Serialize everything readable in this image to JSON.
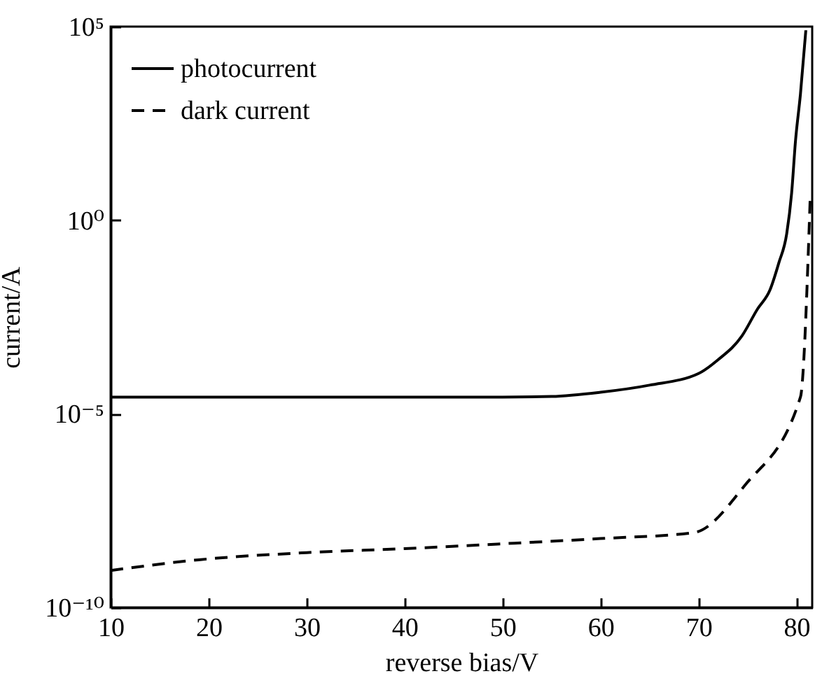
{
  "chart_data": {
    "type": "line",
    "xlabel": "reverse bias/V",
    "ylabel": "current/A",
    "log": "y",
    "legend": "top left",
    "xlim": [
      10,
      81.6
    ],
    "xticks": [
      10,
      20,
      30,
      40,
      50,
      60,
      70,
      80
    ],
    "ylim": [
      1e-10,
      100000.0
    ],
    "yticks": [
      {
        "value": 1e-10,
        "label": "10⁻¹⁰"
      },
      {
        "value": 1e-05,
        "label": "10⁻⁵"
      },
      {
        "value": 1,
        "label": "10⁰"
      },
      {
        "value": 100000.0,
        "label": "10⁵"
      }
    ],
    "series": [
      {
        "name": "photocurrent",
        "color": "#000000",
        "line_style": "solid",
        "x": [
          10,
          20,
          30,
          40,
          50,
          55,
          60,
          65,
          70,
          72,
          74.4,
          76,
          77.3,
          78.2,
          79,
          79.5,
          79.9,
          80.4,
          80.95
        ],
        "values": [
          2.7e-05,
          2.7e-05,
          2.7e-05,
          2.7e-05,
          2.7e-05,
          2.8e-05,
          3.6e-05,
          5.5e-05,
          0.00011,
          0.00025,
          0.001,
          0.005,
          0.016,
          0.08,
          0.45,
          5,
          115,
          1800,
          80000
        ]
      },
      {
        "name": "dark current",
        "color": "#000000",
        "line_style": "dashed",
        "x": [
          10,
          19,
          30,
          40,
          50,
          60,
          69.5,
          74.7,
          80.4,
          81.4
        ],
        "values": [
          9e-10,
          1.7e-09,
          2.6e-09,
          3.3e-09,
          4.4e-09,
          6e-09,
          8.5e-09,
          1.4e-07,
          2.7e-05,
          4
        ]
      }
    ]
  }
}
